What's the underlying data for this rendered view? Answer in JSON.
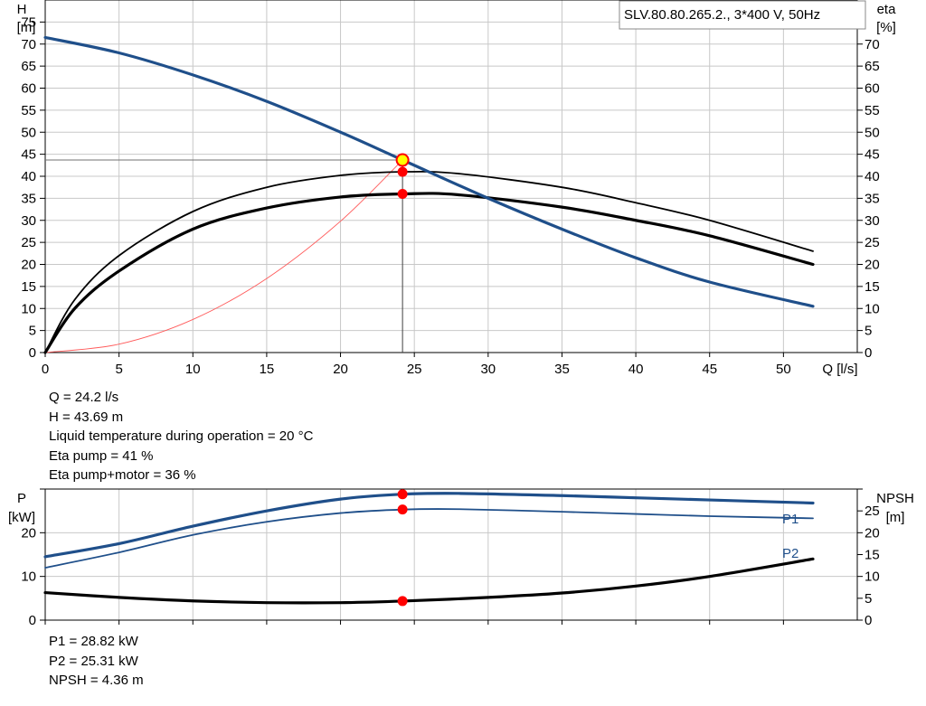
{
  "chart_data": [
    {
      "type": "line",
      "title": "SLV.80.80.265.2., 3*400 V, 50Hz",
      "xlabel": "Q [l/s]",
      "ylabel": [
        "H",
        "[m]"
      ],
      "y2label": [
        "eta",
        "[%]"
      ],
      "xlim": [
        0,
        55
      ],
      "ylim": [
        0,
        80
      ],
      "y2lim": [
        0,
        80
      ],
      "x_ticks": [
        0,
        5,
        10,
        15,
        20,
        25,
        30,
        35,
        40,
        45,
        50
      ],
      "y_ticks": [
        0,
        5,
        10,
        15,
        20,
        25,
        30,
        35,
        40,
        45,
        50,
        55,
        60,
        65,
        70,
        75
      ],
      "y2_ticks": [
        0,
        5,
        10,
        15,
        20,
        25,
        30,
        35,
        40,
        45,
        50,
        55,
        60,
        65,
        70
      ],
      "grid": true,
      "series": [
        {
          "key": "H",
          "color": "#1f4f8a",
          "axis": "left",
          "x": [
            0,
            5,
            10,
            15,
            20,
            24.2,
            30,
            35,
            40,
            45,
            52
          ],
          "y": [
            71.5,
            68,
            63,
            57,
            50,
            43.69,
            35,
            28,
            21.5,
            16,
            10.5
          ]
        },
        {
          "key": "eta_pump",
          "color": "#000000",
          "axis": "right",
          "x": [
            0,
            2,
            5,
            10,
            15,
            20,
            24.2,
            28,
            35,
            40,
            45,
            52
          ],
          "y": [
            0,
            12,
            22,
            32,
            37.5,
            40.2,
            41,
            40.6,
            37.5,
            34,
            30,
            23
          ]
        },
        {
          "key": "eta_total",
          "color": "#000000",
          "axis": "right",
          "x": [
            0,
            2,
            5,
            10,
            15,
            20,
            24.2,
            28,
            35,
            40,
            45,
            52
          ],
          "y": [
            0,
            10,
            18.5,
            28,
            32.8,
            35.3,
            36,
            35.8,
            33,
            30,
            26.5,
            20
          ]
        },
        {
          "key": "system_curve",
          "color": "#ff5a5a",
          "axis": "left",
          "x": [
            0,
            5,
            10,
            15,
            20,
            24.2
          ],
          "y": [
            0,
            1.9,
            7.5,
            16.8,
            29.8,
            43.69
          ]
        }
      ],
      "operating_point": {
        "x": 24.2,
        "H": 43.69,
        "eta_pump": 41,
        "eta_total": 36
      }
    },
    {
      "type": "line",
      "ylabel": [
        "P",
        "[kW]"
      ],
      "y2label": [
        "NPSH",
        "[m]"
      ],
      "xlim": [
        0,
        55
      ],
      "ylim": [
        0,
        30
      ],
      "y2lim": [
        0,
        30
      ],
      "y_ticks": [
        0,
        10,
        20
      ],
      "y2_ticks": [
        0,
        5,
        10,
        15,
        20,
        25
      ],
      "grid": true,
      "series": [
        {
          "name": "P1",
          "color": "#1f4f8a",
          "axis": "left",
          "x": [
            0,
            5,
            10,
            15,
            20,
            24.2,
            28,
            35,
            40,
            45,
            52
          ],
          "y": [
            14.5,
            17.5,
            21.5,
            25,
            27.7,
            28.82,
            29,
            28.5,
            28,
            27.5,
            26.8
          ]
        },
        {
          "name": "P2",
          "color": "#1f4f8a",
          "axis": "left",
          "x": [
            0,
            5,
            10,
            15,
            20,
            24.2,
            28,
            35,
            40,
            45,
            52
          ],
          "y": [
            12,
            15.5,
            19.5,
            22.5,
            24.5,
            25.31,
            25.4,
            24.8,
            24.3,
            23.8,
            23.3
          ]
        },
        {
          "key": "NPSH",
          "color": "#000000",
          "axis": "right",
          "x": [
            0,
            5,
            10,
            15,
            20,
            24.2,
            30,
            35,
            40,
            45,
            52
          ],
          "y": [
            6.3,
            5.2,
            4.4,
            4,
            4,
            4.36,
            5.2,
            6.2,
            7.8,
            10,
            14
          ]
        }
      ],
      "operating_point": {
        "x": 24.2,
        "P1": 28.82,
        "P2": 25.31,
        "NPSH": 4.36
      }
    }
  ],
  "info_top": [
    "Q = 24.2 l/s",
    "H = 43.69 m",
    "Liquid temperature during operation = 20 °C",
    "Eta pump = 41 %",
    "Eta pump+motor = 36 %"
  ],
  "info_bottom": [
    "P1 = 28.82 kW",
    "P2 = 25.31 kW",
    "NPSH = 4.36 m"
  ],
  "colors": {
    "grid": "#c8c8c8",
    "blue": "#1f4f8a",
    "marker": "#ff0000",
    "highlight": "#ffff00"
  }
}
